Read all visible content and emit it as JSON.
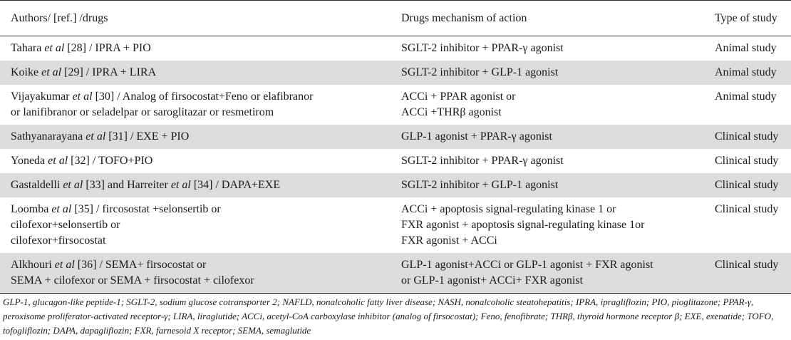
{
  "table": {
    "headers": [
      "Authors/ [ref.] /drugs",
      "Drugs mechanism of action",
      "Type of study"
    ],
    "rows": [
      {
        "authors": [
          [
            "Tahara ",
            "et al",
            " [28] / IPRA + PIO"
          ]
        ],
        "mechanism": [
          "SGLT-2 inhibitor + PPAR-γ agonist"
        ],
        "study": "Animal study"
      },
      {
        "authors": [
          [
            "Koike ",
            "et al",
            " [29] / IPRA + LIRA"
          ]
        ],
        "mechanism": [
          "SGLT-2 inhibitor + GLP-1 agonist"
        ],
        "study": "Animal study"
      },
      {
        "authors": [
          [
            "Vijayakumar ",
            "et al",
            " [30] / Analog of firsocostat+Feno or elafibranor"
          ],
          [
            "or lanifibranor or seladelpar or saroglitazar or resmetirom",
            "",
            ""
          ]
        ],
        "mechanism": [
          "ACCi + PPAR agonist or",
          "ACCi +THRβ agonist"
        ],
        "study": "Animal study"
      },
      {
        "authors": [
          [
            "Sathyanarayana ",
            "et al",
            " [31] / EXE + PIO"
          ]
        ],
        "mechanism": [
          "GLP-1 agonist + PPAR-γ agonist"
        ],
        "study": "Clinical study"
      },
      {
        "authors": [
          [
            "Yoneda ",
            "et al",
            " [32] / TOFO+PIO"
          ]
        ],
        "mechanism": [
          "SGLT-2 inhibitor + PPAR-γ agonist"
        ],
        "study": "Clinical study"
      },
      {
        "authors": [
          [
            "Gastaldelli ",
            "et al",
            " [33] and Harreiter "
          ],
          [
            "",
            "et al",
            " [34] / DAPA+EXE"
          ]
        ],
        "authors_inline": true,
        "mechanism": [
          "SGLT-2 inhibitor + GLP-1 agonist"
        ],
        "study": "Clinical study"
      },
      {
        "authors": [
          [
            "Loomba ",
            "et al",
            " [35] / fircosostat +selonsertib or"
          ],
          [
            "cilofexor+selonsertib or",
            "",
            ""
          ],
          [
            "cilofexor+firsocostat",
            "",
            ""
          ]
        ],
        "mechanism": [
          "ACCi + apoptosis signal-regulating kinase 1 or",
          "FXR agonist + apoptosis signal-regulating kinase 1or",
          "FXR agonist + ACCi"
        ],
        "study": "Clinical study"
      },
      {
        "authors": [
          [
            "Alkhouri ",
            "et al",
            " [36] / SEMA+ firsocostat or"
          ],
          [
            "SEMA + cilofexor or SEMA + firsocostat + cilofexor",
            "",
            ""
          ]
        ],
        "mechanism": [
          "GLP-1 agonist+ACCi or GLP-1 agonist + FXR agonist",
          "or GLP-1 agonist+ ACCi+ FXR agonist"
        ],
        "study": "Clinical study"
      }
    ]
  },
  "footnote": "GLP-1, glucagon-like peptide-1; SGLT-2, sodium glucose cotransporter 2; NAFLD, nonalcoholic fatty liver disease; NASH, nonalcoholic steatohepatitis; IPRA, ipragliflozin; PIO, pioglitazone; PPAR-γ, peroxisome proliferator-activated receptor-γ; LIRA, liraglutide; ACCi, acetyl-CoA carboxylase inhibitor (analog of firsocostat); Feno, fenofibrate; THRβ, thyroid hormone receptor β; EXE, exenatide; TOFO, tofogliflozin; DAPA, dapagliflozin; FXR, farnesoid X receptor; SEMA, semaglutide"
}
